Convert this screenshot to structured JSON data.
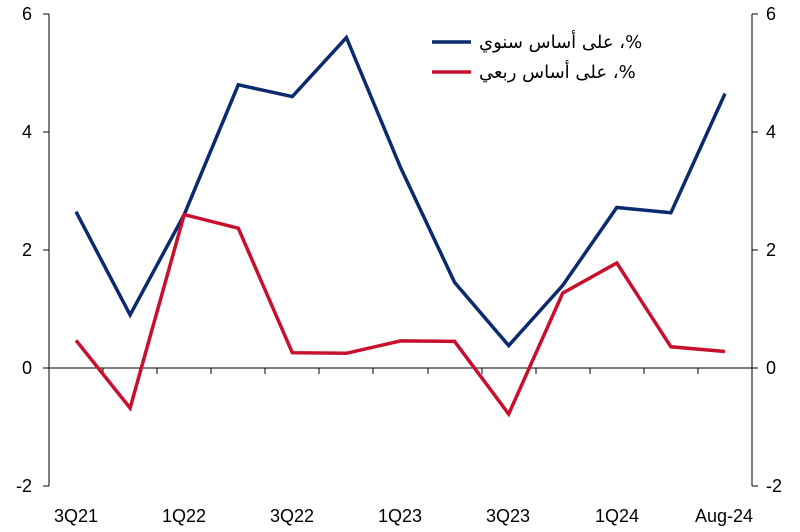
{
  "chart_data": {
    "type": "line",
    "x": [
      "3Q21",
      "4Q21",
      "1Q22",
      "2Q22",
      "3Q22",
      "4Q22",
      "1Q23",
      "2Q23",
      "3Q23",
      "4Q23",
      "1Q24",
      "2Q24",
      "Aug-24"
    ],
    "x_tick_labels": [
      "3Q21",
      "1Q22",
      "3Q22",
      "1Q23",
      "3Q23",
      "1Q24",
      "Aug-24"
    ],
    "y_ticks_left": [
      "6",
      "4",
      "2",
      "0",
      "-2"
    ],
    "y_ticks_right": [
      "6",
      "4",
      "2",
      "0",
      "-2"
    ],
    "ylim": [
      -2,
      6
    ],
    "grid": false,
    "legend_position": "top-right",
    "series": [
      {
        "name": "%، على أساس سنوي",
        "color": "#0b2a6f",
        "values": [
          2.65,
          0.9,
          2.6,
          4.8,
          4.6,
          5.6,
          3.4,
          1.45,
          0.38,
          1.4,
          2.72,
          2.63,
          4.65
        ]
      },
      {
        "name": "%، على أساس ربعي",
        "color": "#c8102e",
        "values": [
          0.47,
          -0.68,
          2.6,
          2.37,
          0.26,
          0.25,
          0.46,
          0.45,
          -0.78,
          1.27,
          1.78,
          0.36,
          0.28
        ]
      }
    ]
  }
}
